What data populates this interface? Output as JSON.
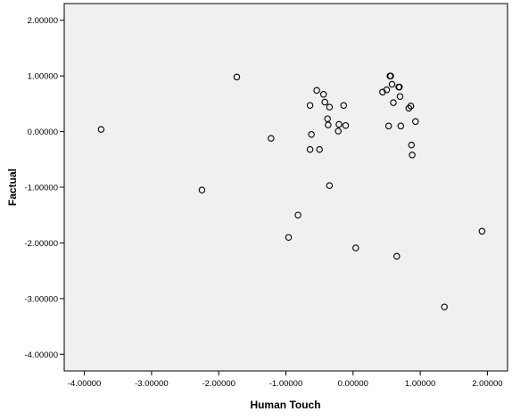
{
  "chart_data": {
    "type": "scatter",
    "title": "",
    "xlabel": "Human Touch",
    "ylabel": "Factual",
    "xlim": [
      -4.3,
      2.3
    ],
    "ylim": [
      -4.3,
      2.3
    ],
    "x_ticks": [
      -4,
      -3,
      -2,
      -1,
      0,
      1,
      2
    ],
    "y_ticks": [
      -4,
      -3,
      -2,
      -1,
      0,
      1,
      2
    ],
    "x_tick_labels": [
      "-4.00000",
      "-3.00000",
      "-2.00000",
      "-1.00000",
      "0.00000",
      "1.00000",
      "2.00000"
    ],
    "y_tick_labels": [
      "-4.00000",
      "-3.00000",
      "-2.00000",
      "-1.00000",
      "0.00000",
      "1.00000",
      "2.00000"
    ],
    "grid": false,
    "plot_background": "#f0f0f0",
    "marker_color": "#000000",
    "marker_style": "hollow-circle",
    "points": [
      [
        -3.75,
        0.04
      ],
      [
        -2.25,
        -1.05
      ],
      [
        -1.73,
        0.98
      ],
      [
        -1.22,
        -0.12
      ],
      [
        -0.96,
        -1.9
      ],
      [
        -0.82,
        -1.5
      ],
      [
        -0.64,
        0.47
      ],
      [
        -0.62,
        -0.05
      ],
      [
        -0.64,
        -0.32
      ],
      [
        -0.54,
        0.74
      ],
      [
        -0.5,
        -0.32
      ],
      [
        -0.44,
        0.67
      ],
      [
        -0.42,
        0.53
      ],
      [
        -0.38,
        0.23
      ],
      [
        -0.37,
        0.12
      ],
      [
        -0.35,
        0.44
      ],
      [
        -0.35,
        -0.97
      ],
      [
        -0.22,
        0.01
      ],
      [
        -0.21,
        0.13
      ],
      [
        -0.14,
        0.47
      ],
      [
        -0.11,
        0.11
      ],
      [
        0.04,
        -2.09
      ],
      [
        0.44,
        0.71
      ],
      [
        0.5,
        0.75
      ],
      [
        0.53,
        0.1
      ],
      [
        0.55,
        1.0
      ],
      [
        0.56,
        1.0
      ],
      [
        0.58,
        0.85
      ],
      [
        0.6,
        0.52
      ],
      [
        0.65,
        -2.24
      ],
      [
        0.68,
        0.8
      ],
      [
        0.69,
        0.8
      ],
      [
        0.7,
        0.63
      ],
      [
        0.71,
        0.1
      ],
      [
        0.83,
        0.42
      ],
      [
        0.86,
        0.46
      ],
      [
        0.87,
        -0.24
      ],
      [
        0.88,
        -0.42
      ],
      [
        0.93,
        0.18
      ],
      [
        1.36,
        -3.15
      ],
      [
        1.92,
        -1.79
      ]
    ]
  }
}
